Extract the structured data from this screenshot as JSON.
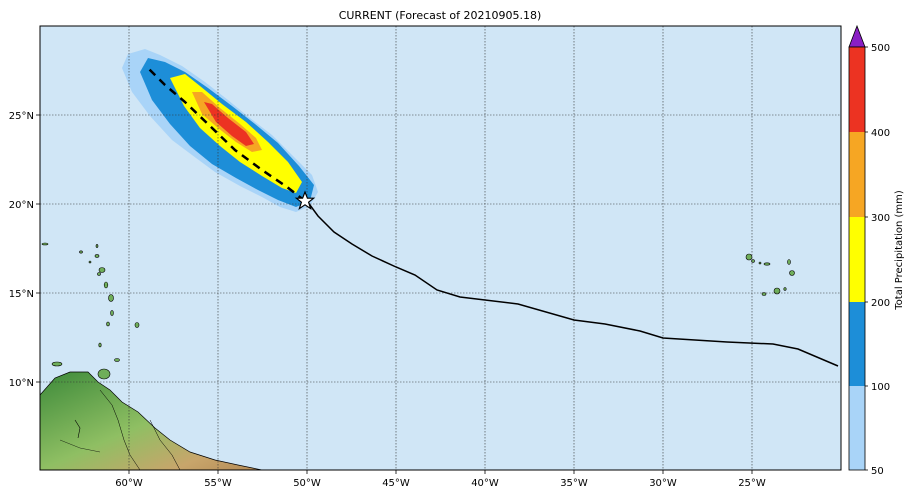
{
  "title": "CURRENT (Forecast of 20210905.18)",
  "lat_labels": [
    "25°N",
    "20°N",
    "15°N",
    "10°N"
  ],
  "lon_labels": [
    "60°W",
    "55°W",
    "50°W",
    "45°W",
    "40°W",
    "35°W",
    "30°W",
    "25°W"
  ],
  "colorbar": {
    "label": "Total Precipitation (mm)",
    "ticks": [
      "500",
      "400",
      "300",
      "200",
      "100",
      "50"
    ],
    "colors": [
      "#a9d4f8",
      "#1d8ed8",
      "#ffff00",
      "#f6a623",
      "#ec3322"
    ],
    "overflow_color": "#8a1fc4"
  },
  "colors": {
    "ocean": "#d0e6f6",
    "land": "#6fae5a",
    "track": "#000000"
  }
}
